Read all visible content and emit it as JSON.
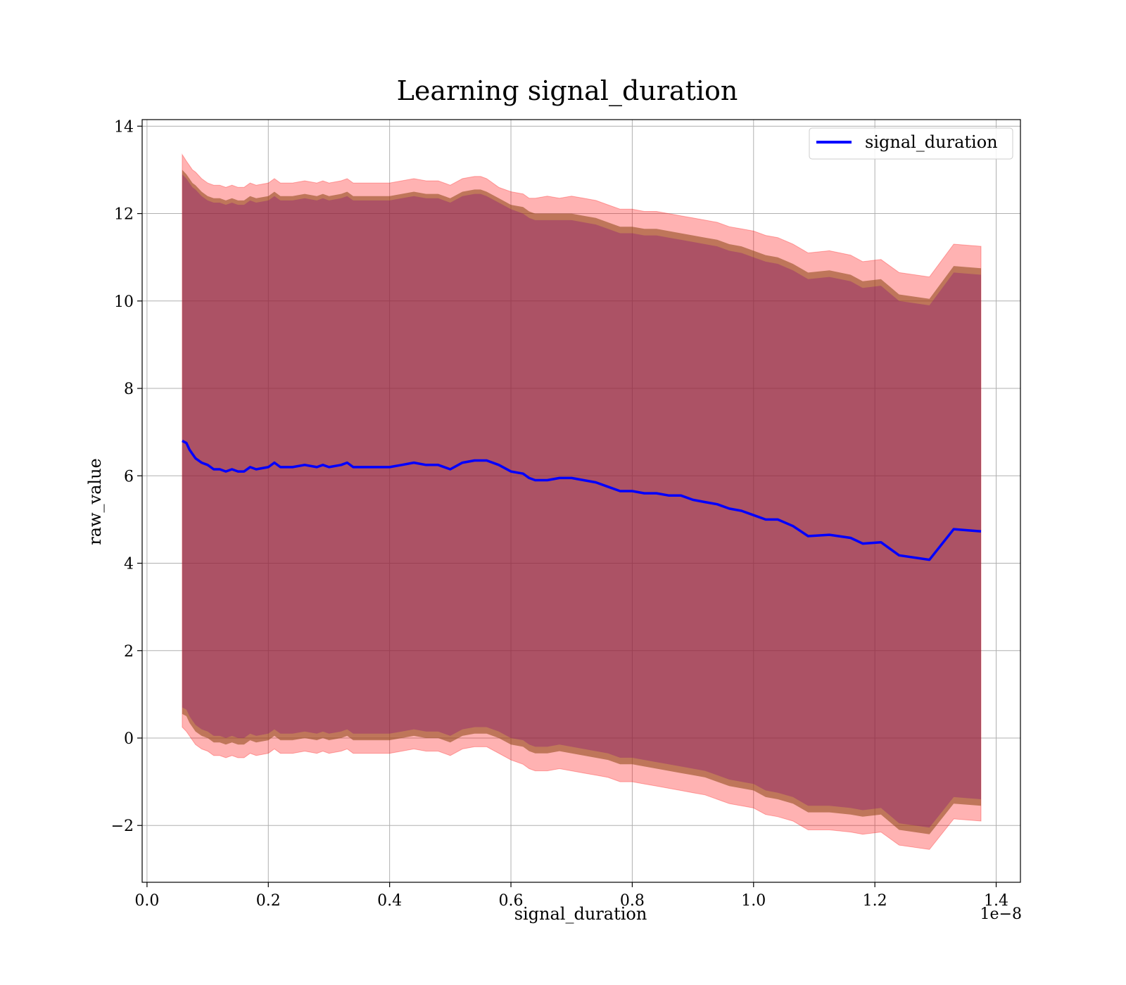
{
  "chart_data": {
    "type": "line",
    "title": "Learning signal_duration",
    "xlabel": "signal_duration",
    "ylabel": "raw_value",
    "x_scale_label": "1e−8",
    "xlim": [
      -0.008,
      1.44
    ],
    "ylim": [
      -3.3,
      14.15
    ],
    "x_ticks": [
      0.0,
      0.2,
      0.4,
      0.6,
      0.8,
      1.0,
      1.2,
      1.4
    ],
    "x_tick_labels": [
      "0.0",
      "0.2",
      "0.4",
      "0.6",
      "0.8",
      "1.0",
      "1.2",
      "1.4"
    ],
    "y_ticks": [
      -2,
      0,
      2,
      4,
      6,
      8,
      10,
      12,
      14
    ],
    "y_tick_labels": [
      "−2",
      "0",
      "2",
      "4",
      "6",
      "8",
      "10",
      "12",
      "14"
    ],
    "grid": true,
    "legend_position": "top-right",
    "colors": {
      "mean_line": "#0000ff",
      "outer_band": "#ff0000",
      "middle_band": "#8b4513",
      "inner_band": "#800080"
    },
    "series": [
      {
        "name": "signal_duration",
        "x": [
          0.058,
          0.065,
          0.07,
          0.075,
          0.08,
          0.09,
          0.1,
          0.11,
          0.12,
          0.13,
          0.14,
          0.15,
          0.16,
          0.17,
          0.18,
          0.2,
          0.21,
          0.22,
          0.24,
          0.26,
          0.28,
          0.29,
          0.3,
          0.32,
          0.33,
          0.34,
          0.36,
          0.38,
          0.4,
          0.42,
          0.44,
          0.46,
          0.48,
          0.5,
          0.52,
          0.54,
          0.55,
          0.56,
          0.58,
          0.6,
          0.62,
          0.63,
          0.64,
          0.66,
          0.68,
          0.7,
          0.72,
          0.74,
          0.76,
          0.78,
          0.8,
          0.82,
          0.84,
          0.86,
          0.88,
          0.9,
          0.92,
          0.94,
          0.96,
          0.98,
          1.0,
          1.02,
          1.04,
          1.065,
          1.09,
          1.125,
          1.16,
          1.18,
          1.21,
          1.24,
          1.29,
          1.33,
          1.375
        ],
        "values": [
          6.8,
          6.75,
          6.6,
          6.5,
          6.4,
          6.3,
          6.25,
          6.15,
          6.15,
          6.1,
          6.15,
          6.1,
          6.1,
          6.2,
          6.15,
          6.2,
          6.3,
          6.2,
          6.2,
          6.25,
          6.2,
          6.25,
          6.2,
          6.25,
          6.3,
          6.2,
          6.2,
          6.2,
          6.2,
          6.25,
          6.3,
          6.25,
          6.25,
          6.15,
          6.3,
          6.35,
          6.35,
          6.35,
          6.25,
          6.1,
          6.05,
          5.95,
          5.9,
          5.9,
          5.95,
          5.95,
          5.9,
          5.85,
          5.75,
          5.65,
          5.65,
          5.6,
          5.6,
          5.55,
          5.55,
          5.45,
          5.4,
          5.35,
          5.25,
          5.2,
          5.1,
          5.0,
          5.0,
          4.85,
          4.62,
          4.65,
          4.58,
          4.45,
          4.48,
          4.18,
          4.08,
          4.78,
          4.73
        ],
        "upper_inner": [
          12.9,
          12.8,
          12.7,
          12.6,
          12.55,
          12.4,
          12.3,
          12.25,
          12.25,
          12.2,
          12.25,
          12.2,
          12.2,
          12.3,
          12.25,
          12.3,
          12.4,
          12.3,
          12.3,
          12.35,
          12.3,
          12.35,
          12.3,
          12.35,
          12.4,
          12.3,
          12.3,
          12.3,
          12.3,
          12.35,
          12.4,
          12.35,
          12.35,
          12.25,
          12.4,
          12.45,
          12.45,
          12.4,
          12.25,
          12.1,
          12.0,
          11.9,
          11.85,
          11.85,
          11.85,
          11.85,
          11.8,
          11.75,
          11.65,
          11.55,
          11.55,
          11.5,
          11.5,
          11.45,
          11.4,
          11.35,
          11.3,
          11.25,
          11.15,
          11.1,
          11.0,
          10.9,
          10.85,
          10.7,
          10.5,
          10.55,
          10.45,
          10.3,
          10.35,
          10.0,
          9.9,
          10.65,
          10.6
        ],
        "upper_middle": [
          13.0,
          12.9,
          12.8,
          12.7,
          12.65,
          12.5,
          12.4,
          12.35,
          12.35,
          12.3,
          12.35,
          12.3,
          12.3,
          12.4,
          12.35,
          12.4,
          12.5,
          12.4,
          12.4,
          12.45,
          12.4,
          12.45,
          12.4,
          12.45,
          12.5,
          12.4,
          12.4,
          12.4,
          12.4,
          12.45,
          12.5,
          12.45,
          12.45,
          12.35,
          12.5,
          12.55,
          12.55,
          12.5,
          12.35,
          12.2,
          12.15,
          12.05,
          12.0,
          12.0,
          12.0,
          12.0,
          11.95,
          11.9,
          11.8,
          11.7,
          11.7,
          11.65,
          11.65,
          11.6,
          11.55,
          11.5,
          11.45,
          11.4,
          11.3,
          11.25,
          11.15,
          11.05,
          11.0,
          10.85,
          10.65,
          10.7,
          10.6,
          10.45,
          10.5,
          10.15,
          10.05,
          10.8,
          10.75
        ],
        "upper_outer": [
          13.35,
          13.2,
          13.1,
          13.0,
          12.95,
          12.8,
          12.7,
          12.65,
          12.65,
          12.6,
          12.65,
          12.6,
          12.6,
          12.7,
          12.65,
          12.7,
          12.8,
          12.7,
          12.7,
          12.75,
          12.7,
          12.75,
          12.7,
          12.75,
          12.8,
          12.7,
          12.7,
          12.7,
          12.7,
          12.75,
          12.8,
          12.75,
          12.75,
          12.65,
          12.8,
          12.85,
          12.85,
          12.8,
          12.6,
          12.5,
          12.45,
          12.35,
          12.35,
          12.4,
          12.35,
          12.4,
          12.35,
          12.3,
          12.2,
          12.1,
          12.1,
          12.05,
          12.05,
          12.0,
          11.95,
          11.9,
          11.85,
          11.8,
          11.7,
          11.65,
          11.6,
          11.5,
          11.45,
          11.3,
          11.1,
          11.15,
          11.05,
          10.9,
          10.95,
          10.65,
          10.55,
          11.3,
          11.25
        ],
        "lower_inner": [
          0.7,
          0.65,
          0.5,
          0.4,
          0.3,
          0.2,
          0.15,
          0.05,
          0.05,
          0.0,
          0.05,
          0.0,
          0.0,
          0.1,
          0.05,
          0.1,
          0.2,
          0.1,
          0.1,
          0.15,
          0.1,
          0.15,
          0.1,
          0.15,
          0.2,
          0.1,
          0.1,
          0.1,
          0.1,
          0.15,
          0.2,
          0.15,
          0.15,
          0.05,
          0.2,
          0.25,
          0.25,
          0.25,
          0.15,
          0.0,
          -0.05,
          -0.15,
          -0.2,
          -0.2,
          -0.15,
          -0.2,
          -0.25,
          -0.3,
          -0.35,
          -0.45,
          -0.45,
          -0.5,
          -0.55,
          -0.6,
          -0.65,
          -0.7,
          -0.75,
          -0.85,
          -0.95,
          -1.0,
          -1.05,
          -1.2,
          -1.25,
          -1.35,
          -1.55,
          -1.55,
          -1.6,
          -1.65,
          -1.6,
          -1.95,
          -2.05,
          -1.35,
          -1.4
        ],
        "lower_middle": [
          0.55,
          0.5,
          0.35,
          0.25,
          0.15,
          0.05,
          0.0,
          -0.1,
          -0.1,
          -0.15,
          -0.1,
          -0.15,
          -0.15,
          -0.05,
          -0.1,
          -0.05,
          0.05,
          -0.05,
          -0.05,
          0.0,
          -0.05,
          0.0,
          -0.05,
          0.0,
          0.05,
          -0.05,
          -0.05,
          -0.05,
          -0.05,
          0.0,
          0.05,
          0.0,
          0.0,
          -0.1,
          0.05,
          0.1,
          0.1,
          0.1,
          0.0,
          -0.15,
          -0.2,
          -0.3,
          -0.35,
          -0.35,
          -0.3,
          -0.35,
          -0.4,
          -0.45,
          -0.5,
          -0.6,
          -0.6,
          -0.65,
          -0.7,
          -0.75,
          -0.8,
          -0.85,
          -0.9,
          -1.0,
          -1.1,
          -1.15,
          -1.2,
          -1.35,
          -1.4,
          -1.5,
          -1.7,
          -1.7,
          -1.75,
          -1.8,
          -1.75,
          -2.1,
          -2.2,
          -1.5,
          -1.55
        ],
        "lower_outer": [
          0.25,
          0.15,
          0.05,
          -0.05,
          -0.15,
          -0.25,
          -0.3,
          -0.4,
          -0.4,
          -0.45,
          -0.4,
          -0.45,
          -0.45,
          -0.35,
          -0.4,
          -0.35,
          -0.25,
          -0.35,
          -0.35,
          -0.3,
          -0.35,
          -0.3,
          -0.35,
          -0.3,
          -0.25,
          -0.35,
          -0.35,
          -0.35,
          -0.35,
          -0.3,
          -0.25,
          -0.3,
          -0.3,
          -0.4,
          -0.25,
          -0.2,
          -0.2,
          -0.2,
          -0.35,
          -0.5,
          -0.6,
          -0.7,
          -0.75,
          -0.75,
          -0.7,
          -0.75,
          -0.8,
          -0.85,
          -0.9,
          -1.0,
          -1.0,
          -1.05,
          -1.1,
          -1.15,
          -1.2,
          -1.25,
          -1.3,
          -1.4,
          -1.5,
          -1.55,
          -1.6,
          -1.75,
          -1.8,
          -1.9,
          -2.1,
          -2.1,
          -2.15,
          -2.2,
          -2.15,
          -2.45,
          -2.55,
          -1.85,
          -1.9
        ]
      }
    ]
  }
}
